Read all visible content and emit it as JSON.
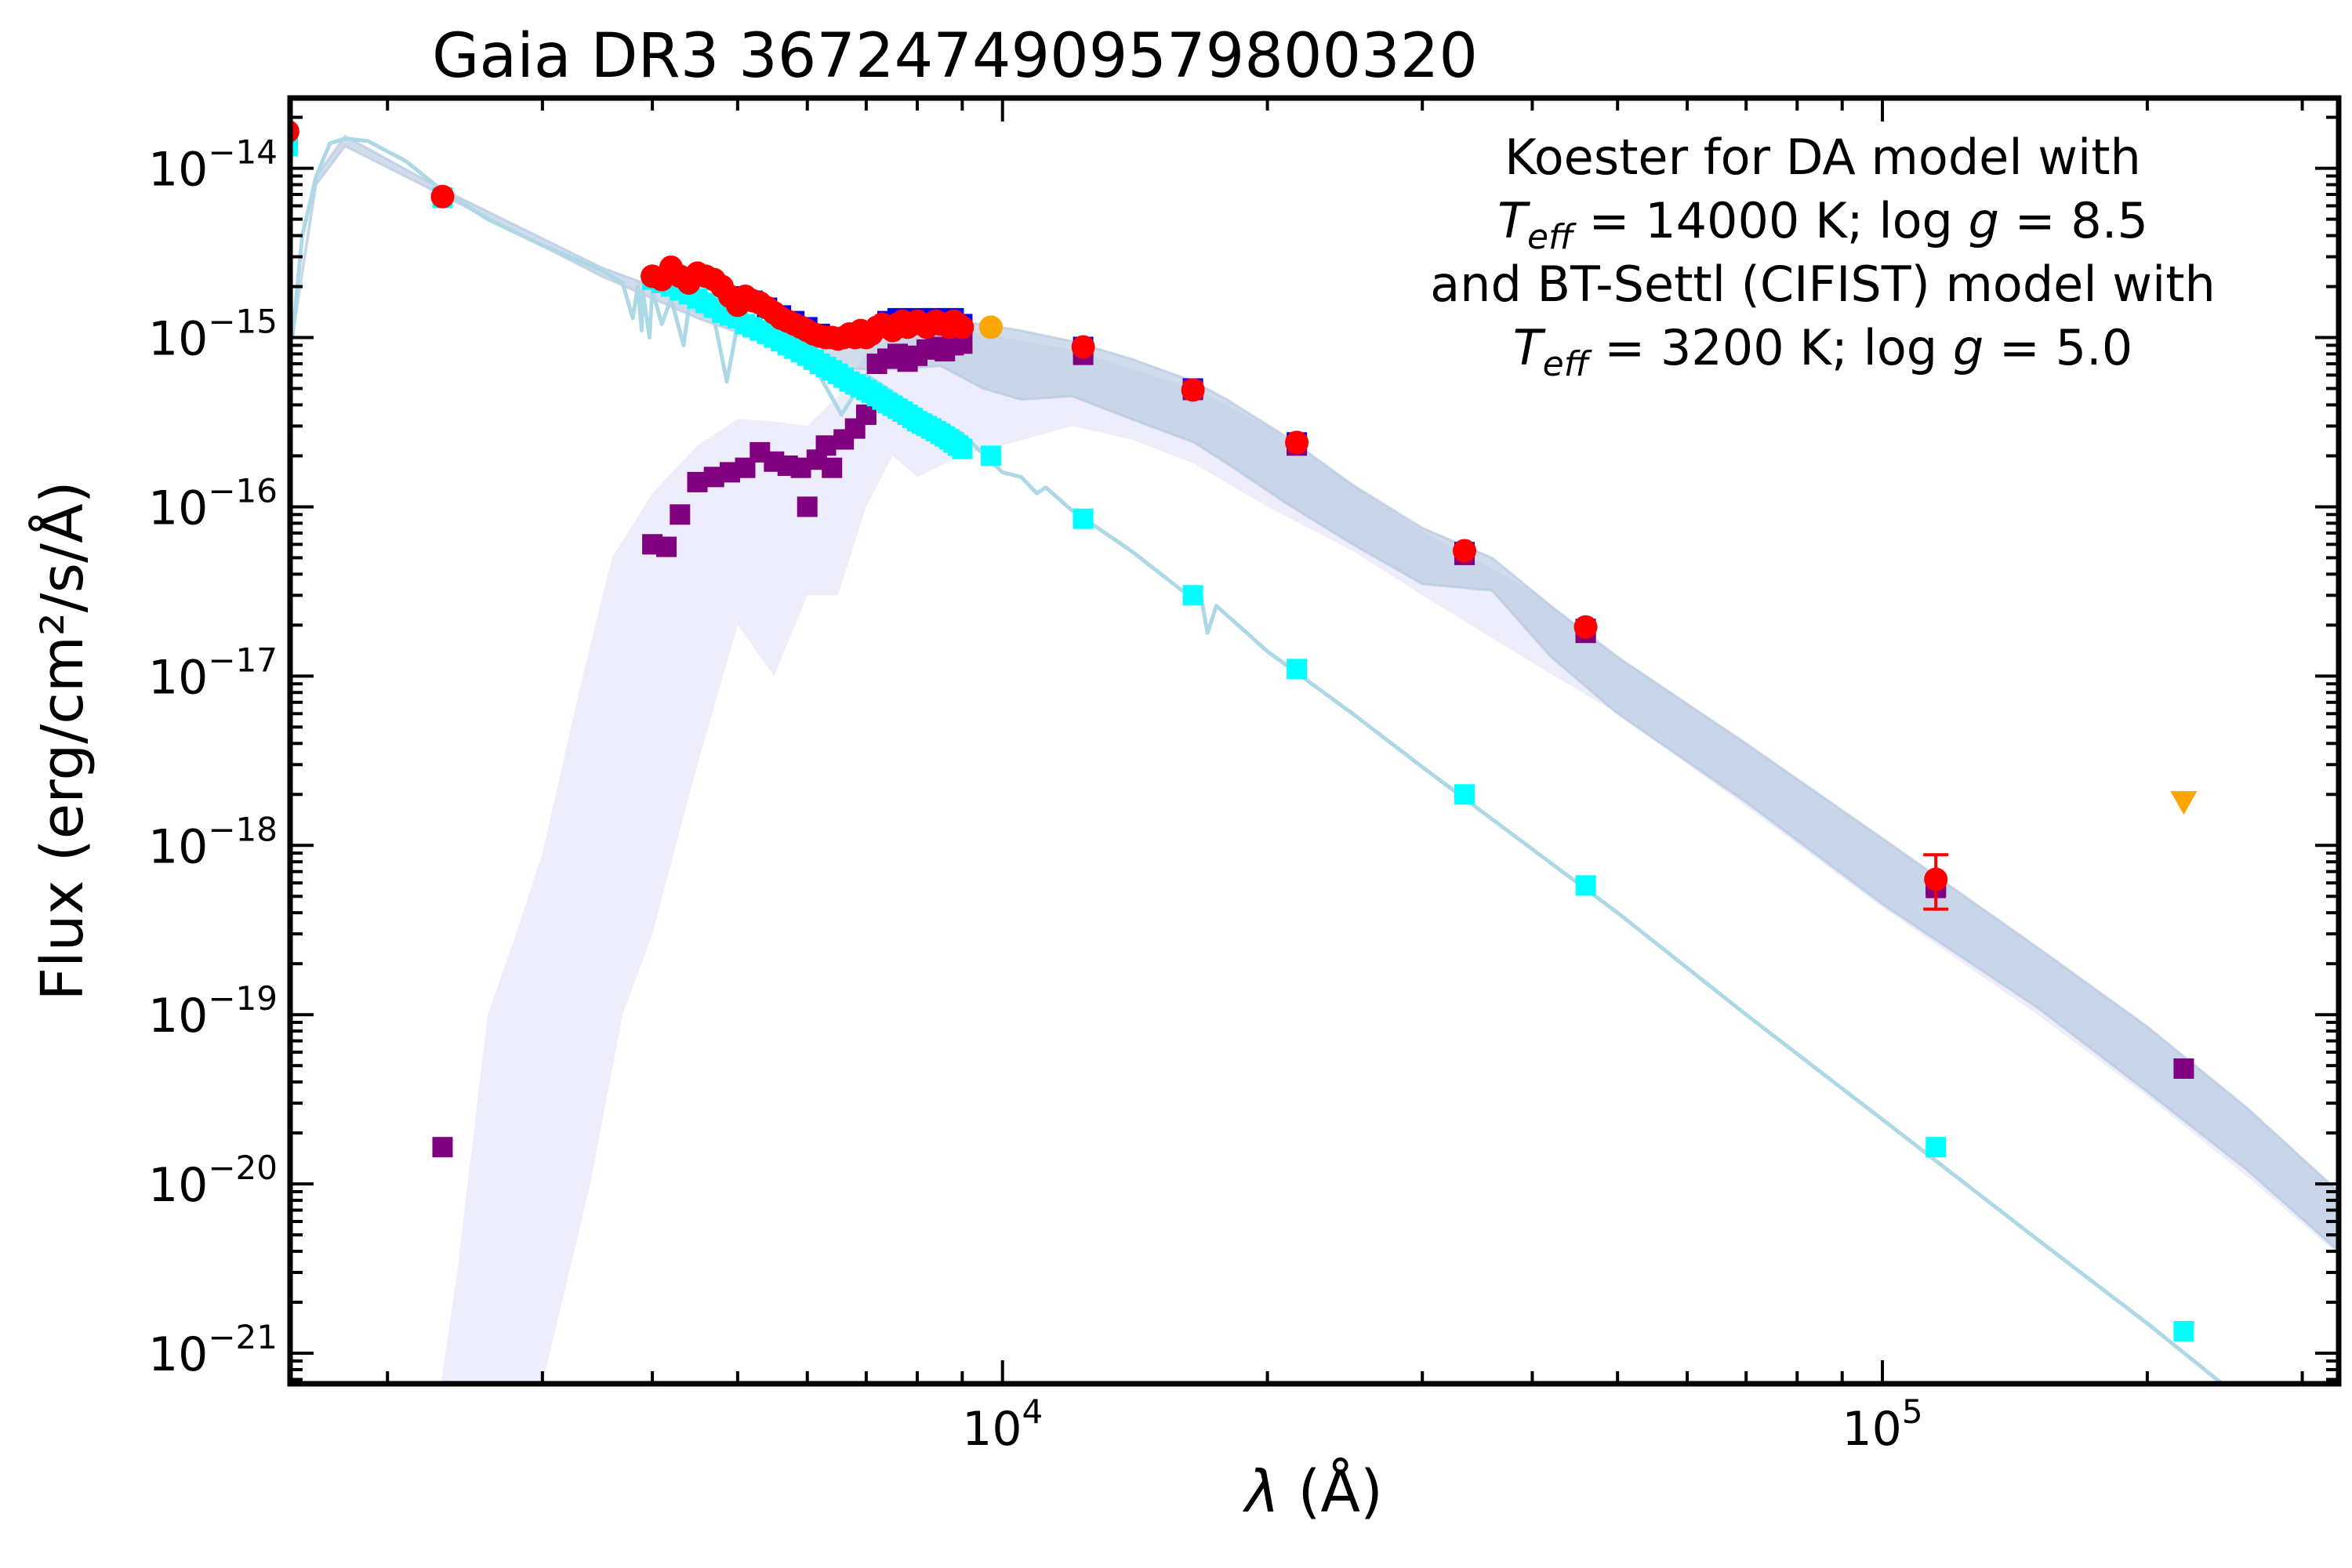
{
  "chart_data": {
    "type": "scatter",
    "title": "Gaia DR3 3672474909579800320",
    "xlabel_symbol": "λ",
    "xlabel_unit": "(Å)",
    "ylabel": "Flux (erg/cm²/s/Å)",
    "xscale": "log",
    "yscale": "log",
    "xlim": [
      1550,
      330000
    ],
    "ylim": [
      6.6e-22,
      2.6e-14
    ],
    "grid": false,
    "x_ticks": [
      {
        "value": 10000,
        "base": "10",
        "exp": "4"
      },
      {
        "value": 100000,
        "base": "10",
        "exp": "5"
      }
    ],
    "y_ticks": [
      {
        "value": 1e-14,
        "base": "10",
        "exp": "−14"
      },
      {
        "value": 1e-15,
        "base": "10",
        "exp": "−15"
      },
      {
        "value": 1e-16,
        "base": "10",
        "exp": "−16"
      },
      {
        "value": 1e-17,
        "base": "10",
        "exp": "−17"
      },
      {
        "value": 1e-18,
        "base": "10",
        "exp": "−18"
      },
      {
        "value": 1e-19,
        "base": "10",
        "exp": "−19"
      },
      {
        "value": 1e-20,
        "base": "10",
        "exp": "−20"
      },
      {
        "value": 1e-21,
        "base": "10",
        "exp": "−21"
      }
    ],
    "annotation": [
      {
        "parts": [
          {
            "t": "Koester for DA model with"
          }
        ]
      },
      {
        "parts": [
          {
            "t": "T",
            "i": true
          },
          {
            "t": "eff",
            "i": true,
            "sub": true
          },
          {
            "t": " = 14000 K; log"
          },
          {
            "t": " g",
            "i": true
          },
          {
            "t": " = 8.5"
          }
        ]
      },
      {
        "parts": [
          {
            "t": "and BT-Settl (CIFIST) model with"
          }
        ]
      },
      {
        "parts": [
          {
            "t": "T",
            "i": true
          },
          {
            "t": "eff",
            "i": true,
            "sub": true
          },
          {
            "t": " = 3200 K; log"
          },
          {
            "t": " g",
            "i": true
          },
          {
            "t": " = 5.0"
          }
        ]
      }
    ],
    "colors": {
      "observed": "#ff0000",
      "excess": "#ffa500",
      "white_dwarf_model": "#00ffff",
      "cool_companion_model": "#800080",
      "combined_model": "#0000ff",
      "wd_spectrum": "#add8e6",
      "companion_spectrum": "#e6e6fa",
      "combined_spectrum": "#b0c4de"
    },
    "series": {
      "observed": {
        "x": [
          1540,
          2310,
          4000,
          4100,
          4200,
          4300,
          4400,
          4500,
          4600,
          4700,
          4800,
          4900,
          5000,
          5100,
          5200,
          5300,
          5400,
          5500,
          5600,
          5700,
          5800,
          5900,
          6000,
          6100,
          6200,
          6300,
          6400,
          6500,
          6600,
          6700,
          6800,
          6900,
          7000,
          7100,
          7200,
          7300,
          7400,
          7500,
          7600,
          7700,
          7800,
          7900,
          8000,
          8100,
          8200,
          8300,
          8400,
          8500,
          8600,
          8700,
          8800,
          8900,
          9000,
          12350,
          16460,
          21600,
          33500,
          46000,
          115000
        ],
        "y": [
          1.65e-14,
          6.8e-15,
          2.3e-15,
          2.2e-15,
          2.6e-15,
          2.3e-15,
          2.1e-15,
          2.4e-15,
          2.3e-15,
          2.2e-15,
          2e-15,
          1.75e-15,
          1.55e-15,
          1.75e-15,
          1.65e-15,
          1.6e-15,
          1.5e-15,
          1.4e-15,
          1.3e-15,
          1.25e-15,
          1.2e-15,
          1.15e-15,
          1.1e-15,
          1.05e-15,
          1.02e-15,
          1e-15,
          1e-15,
          9.8e-16,
          1e-15,
          1.05e-15,
          1e-15,
          1.1e-15,
          1e-15,
          1.05e-15,
          1.15e-15,
          1.2e-15,
          1.15e-15,
          1.1e-15,
          1.2e-15,
          1.25e-15,
          1.15e-15,
          1.2e-15,
          1.25e-15,
          1.2e-15,
          1.15e-15,
          1.2e-15,
          1.25e-15,
          1.2e-15,
          1.2e-15,
          1.15e-15,
          1.25e-15,
          1.2e-15,
          1.15e-15,
          8.8e-16,
          4.9e-16,
          2.4e-16,
          5.5e-17,
          1.95e-17,
          6.3e-19
        ],
        "err_x": [
          115000
        ],
        "err_lo": [
          4.2e-19
        ],
        "err_hi": [
          8.8e-19
        ]
      },
      "excess_point": {
        "x": [
          9700
        ],
        "y": [
          1.15e-15
        ]
      },
      "upper_limit": {
        "x": [
          220000
        ],
        "y": [
          1.8e-18
        ]
      },
      "wd_model_points": {
        "x": [
          1540,
          2310,
          4000,
          4100,
          4200,
          4300,
          4400,
          4500,
          4600,
          4700,
          4800,
          4900,
          5000,
          5100,
          5200,
          5300,
          5400,
          5500,
          5600,
          5700,
          5800,
          5900,
          6000,
          6100,
          6200,
          6300,
          6400,
          6500,
          6600,
          6700,
          6800,
          6900,
          7000,
          7100,
          7200,
          7300,
          7400,
          7500,
          7600,
          7700,
          7800,
          7900,
          8000,
          8100,
          8200,
          8300,
          8400,
          8500,
          8600,
          8700,
          8800,
          8900,
          9000,
          9700,
          12350,
          16460,
          21600,
          33500,
          46000,
          115000,
          220000
        ],
        "y": [
          1.35e-14,
          6.7e-15,
          2.2e-15,
          2.1e-15,
          2e-15,
          1.9e-15,
          1.8e-15,
          1.7e-15,
          1.6e-15,
          1.5e-15,
          1.4e-15,
          1.35e-15,
          1.3e-15,
          1.2e-15,
          1.15e-15,
          1.1e-15,
          1.05e-15,
          1e-15,
          9.5e-16,
          9e-16,
          8.6e-16,
          8.2e-16,
          7.8e-16,
          7.4e-16,
          7e-16,
          6.7e-16,
          6.4e-16,
          6.1e-16,
          5.8e-16,
          5.5e-16,
          5.3e-16,
          5.1e-16,
          4.9e-16,
          4.7e-16,
          4.5e-16,
          4.3e-16,
          4.1e-16,
          3.95e-16,
          3.8e-16,
          3.65e-16,
          3.5e-16,
          3.35e-16,
          3.2e-16,
          3.1e-16,
          3e-16,
          2.9e-16,
          2.8e-16,
          2.7e-16,
          2.6e-16,
          2.5e-16,
          2.4e-16,
          2.3e-16,
          2.2e-16,
          2e-16,
          8.5e-17,
          3e-17,
          1.1e-17,
          2e-18,
          5.8e-19,
          1.65e-20,
          1.35e-21
        ]
      },
      "companion_model_points": {
        "x": [
          2310,
          4000,
          4150,
          4300,
          4500,
          4700,
          4900,
          5100,
          5300,
          5500,
          5700,
          5900,
          6000,
          6150,
          6300,
          6400,
          6600,
          6800,
          7000,
          7200,
          7400,
          7600,
          7800,
          8000,
          8200,
          8400,
          8600,
          8800,
          9000,
          12350,
          16460,
          21600,
          33500,
          46000,
          115000,
          220000
        ],
        "y": [
          1.65e-20,
          6e-17,
          5.8e-17,
          9e-17,
          1.4e-16,
          1.5e-16,
          1.6e-16,
          1.7e-16,
          2.1e-16,
          1.85e-16,
          1.75e-16,
          1.7e-16,
          1e-16,
          1.9e-16,
          2.3e-16,
          1.7e-16,
          2.5e-16,
          2.9e-16,
          3.5e-16,
          7e-16,
          7.5e-16,
          8e-16,
          7.2e-16,
          7.8e-16,
          8.5e-16,
          8.8e-16,
          8.3e-16,
          9e-16,
          9.2e-16,
          7.9e-16,
          4.9e-16,
          2.3e-16,
          5.2e-17,
          1.8e-17,
          5.6e-19,
          4.8e-20
        ]
      },
      "combined_model_points": {
        "x": [
          1540,
          2310,
          5000,
          5200,
          5400,
          5600,
          5800,
          6000,
          6200,
          7400,
          7600,
          7800,
          8000,
          8200,
          8400,
          8600,
          8800,
          9000,
          12350,
          16460,
          21600,
          33500,
          46000,
          115000
        ],
        "y": [
          1.5e-14,
          6.7e-15,
          1.75e-15,
          1.65e-15,
          1.5e-15,
          1.35e-15,
          1.25e-15,
          1.15e-15,
          1.05e-15,
          1.25e-15,
          1.3e-15,
          1.2e-15,
          1.3e-15,
          1.2e-15,
          1.3e-15,
          1.25e-15,
          1.3e-15,
          1.2e-15,
          8.8e-16,
          5e-16,
          2.4e-16,
          5.4e-17,
          1.9e-17,
          5.8e-19
        ]
      },
      "wd_spectrum": {
        "x": [
          1560,
          1600,
          1660,
          1720,
          1790,
          1900,
          2100,
          2300,
          2600,
          3000,
          3500,
          3700,
          3800,
          3850,
          3890,
          3900,
          3970,
          4000,
          4100,
          4200,
          4340,
          4400,
          4700,
          4861,
          5000,
          5500,
          6000,
          6563,
          7000,
          8000,
          9000,
          10000,
          10500,
          10940,
          11200,
          12000,
          14000,
          16000,
          16800,
          17100,
          17500,
          20000,
          25000,
          30000,
          40000,
          50000,
          70000,
          100000,
          150000,
          200000,
          260000
        ],
        "y": [
          1e-15,
          4e-15,
          9e-15,
          1.4e-14,
          1.5e-14,
          1.45e-14,
          1.1e-14,
          7.5e-15,
          5e-15,
          3.5e-15,
          2.5e-15,
          2.1e-15,
          1.3e-15,
          2e-15,
          1.1e-15,
          1.9e-15,
          1e-15,
          1.9e-15,
          1.2e-15,
          1.7e-15,
          9e-16,
          1.5e-15,
          1.3e-15,
          5.5e-16,
          1.2e-15,
          1e-15,
          8e-16,
          3.5e-16,
          6e-16,
          3.8e-16,
          2.7e-16,
          1.6e-16,
          1.5e-16,
          1.2e-16,
          1.3e-16,
          9.5e-17,
          5.5e-17,
          3.2e-17,
          3e-17,
          1.8e-17,
          2.6e-17,
          1.4e-17,
          6e-18,
          2.9e-18,
          9.5e-19,
          4e-19,
          1e-19,
          2.4e-20,
          4.7e-21,
          1.5e-21,
          5e-22
        ]
      },
      "combined_spectrum_upper": {
        "x": [
          1560,
          1660,
          1790,
          2300,
          3500,
          4500,
          5500,
          6500,
          7500,
          8500,
          9500,
          10500,
          12000,
          14000,
          16500,
          18000,
          21000,
          25000,
          30000,
          36000,
          42000,
          50000,
          70000,
          100000,
          150000,
          200000,
          260000,
          330000
        ],
        "y": [
          1e-15,
          9e-15,
          1.55e-14,
          7.6e-15,
          2.6e-15,
          1.6e-15,
          1.2e-15,
          1e-15,
          1.2e-15,
          1.25e-15,
          1.2e-15,
          1.1e-15,
          9.5e-16,
          7.5e-16,
          5.5e-16,
          4.3e-16,
          2.6e-16,
          1.35e-16,
          7.5e-17,
          5e-17,
          2.6e-17,
          1.3e-17,
          4e-18,
          1.1e-18,
          2.5e-19,
          8.5e-20,
          2.8e-20,
          9e-21
        ]
      },
      "combined_spectrum_lower": {
        "x": [
          1560,
          1660,
          1790,
          2300,
          3500,
          4500,
          5500,
          6500,
          7500,
          8500,
          9500,
          10500,
          12000,
          14000,
          16500,
          18000,
          21000,
          25000,
          30000,
          36000,
          42000,
          50000,
          70000,
          100000,
          150000,
          200000,
          260000,
          330000
        ],
        "y": [
          1e-15,
          8e-15,
          1.35e-14,
          7e-15,
          2.3e-15,
          1.3e-15,
          9e-16,
          6.5e-16,
          6.5e-16,
          6.8e-16,
          5e-16,
          4.3e-16,
          4.5e-16,
          3.3e-16,
          2.4e-16,
          1.8e-16,
          1.05e-16,
          6e-17,
          3.5e-17,
          3.2e-17,
          1.3e-17,
          6e-18,
          1.8e-18,
          4.5e-19,
          1.1e-19,
          3.5e-20,
          1.2e-20,
          4e-21
        ]
      },
      "companion_spectrum_upper": {
        "x": [
          2300,
          2400,
          2600,
          2800,
          3000,
          3300,
          3600,
          4000,
          4500,
          5000,
          5500,
          6000,
          6500,
          7000,
          7500,
          8000,
          9000,
          10000,
          12000,
          14000,
          16500,
          20000,
          25000,
          30000,
          40000,
          50000,
          70000,
          100000,
          150000,
          200000,
          260000,
          330000
        ],
        "y": [
          6.6e-22,
          3e-21,
          1e-19,
          3e-19,
          9e-19,
          8e-18,
          5e-17,
          1.2e-16,
          2.3e-16,
          3.3e-16,
          3.2e-16,
          3e-16,
          4.5e-16,
          8e-16,
          1e-15,
          1.1e-15,
          1.1e-15,
          1e-15,
          8.5e-16,
          6.5e-16,
          5e-16,
          3e-16,
          1.35e-16,
          7.2e-17,
          3.2e-17,
          1.3e-17,
          4e-18,
          1.1e-18,
          2.5e-19,
          8.5e-20,
          2.8e-20,
          9e-21
        ]
      },
      "companion_spectrum_lower": {
        "x": [
          2300,
          3000,
          3400,
          3700,
          4000,
          4500,
          5000,
          5500,
          6000,
          6500,
          7000,
          7500,
          8000,
          9000,
          10000,
          12000,
          14000,
          16500,
          20000,
          25000,
          30000,
          40000,
          50000,
          70000,
          100000,
          150000,
          200000,
          260000,
          330000
        ],
        "y": [
          6.6e-22,
          6.6e-22,
          1e-20,
          1e-19,
          3e-19,
          3e-18,
          2e-17,
          1e-17,
          3e-17,
          3e-17,
          1e-16,
          2e-16,
          1.5e-16,
          2e-16,
          2.3e-16,
          3e-16,
          2.5e-16,
          1.8e-16,
          1e-16,
          5.5e-17,
          3e-17,
          1.2e-17,
          6e-18,
          1.7e-18,
          4.3e-19,
          1e-19,
          3.3e-20,
          1.1e-20,
          3.8e-21
        ]
      }
    }
  }
}
